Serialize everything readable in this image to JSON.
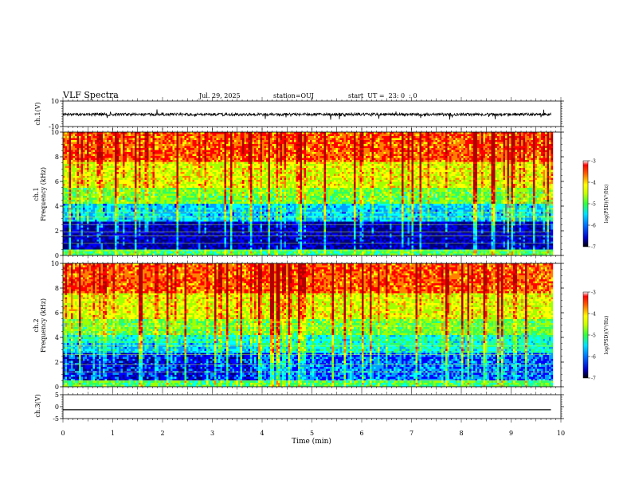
{
  "header": {
    "title": "VLF Spectra",
    "date": "Jul. 29, 2025",
    "station": "station=OUJ",
    "start": "start  UT =  23: 0  : 0"
  },
  "chart_data": [
    {
      "type": "line",
      "panel": "ch1-waveform",
      "ylabel": "ch.1(V)",
      "ylim": [
        -10,
        10
      ],
      "yticks": [
        10,
        -10
      ],
      "xlim": [
        0,
        10
      ],
      "series_description": "noisy waveform centered near -0.5 V with sporadic negative spikes"
    },
    {
      "type": "heatmap",
      "panel": "ch1-spectrogram",
      "ylabel": "ch.1\nFrequency (kHz)",
      "ylim": [
        0,
        10
      ],
      "yticks": [
        0,
        2,
        4,
        6,
        8,
        10
      ],
      "xlim": [
        0,
        10
      ],
      "colorbar": {
        "label": "log(PSD)(V²/Hz)",
        "range": [
          -7,
          -3
        ],
        "ticks": [
          -3,
          -4,
          -5,
          -6,
          -7
        ]
      }
    },
    {
      "type": "heatmap",
      "panel": "ch2-spectrogram",
      "ylabel": "ch.2\nFrequency (kHz)",
      "ylim": [
        0,
        10
      ],
      "yticks": [
        0,
        2,
        4,
        6,
        8,
        10
      ],
      "xlim": [
        0,
        10
      ],
      "colorbar": {
        "label": "log(PSD)(V²/Hz)",
        "range": [
          -7,
          -3
        ],
        "ticks": [
          -3,
          -4,
          -5,
          -6,
          -7
        ]
      }
    },
    {
      "type": "line",
      "panel": "ch3-waveform",
      "ylabel": "ch.3(V)",
      "ylim": [
        -5,
        5
      ],
      "yticks": [
        5,
        0,
        -5
      ],
      "xlim": [
        0,
        10
      ],
      "series": [
        {
          "x": [
            0,
            9.8
          ],
          "y": [
            -1.3,
            -1.3
          ]
        }
      ]
    }
  ],
  "xaxis": {
    "label": "Time (min)",
    "ticks": [
      0,
      1,
      2,
      3,
      4,
      5,
      6,
      7,
      8,
      9,
      10
    ],
    "data_end": 9.8
  },
  "colors": {
    "colormap": [
      "#00007a",
      "#0000ff",
      "#00a0ff",
      "#00ffff",
      "#30ff60",
      "#a0ff00",
      "#ffff00",
      "#ff8000",
      "#ff0000",
      "#b00000"
    ]
  }
}
